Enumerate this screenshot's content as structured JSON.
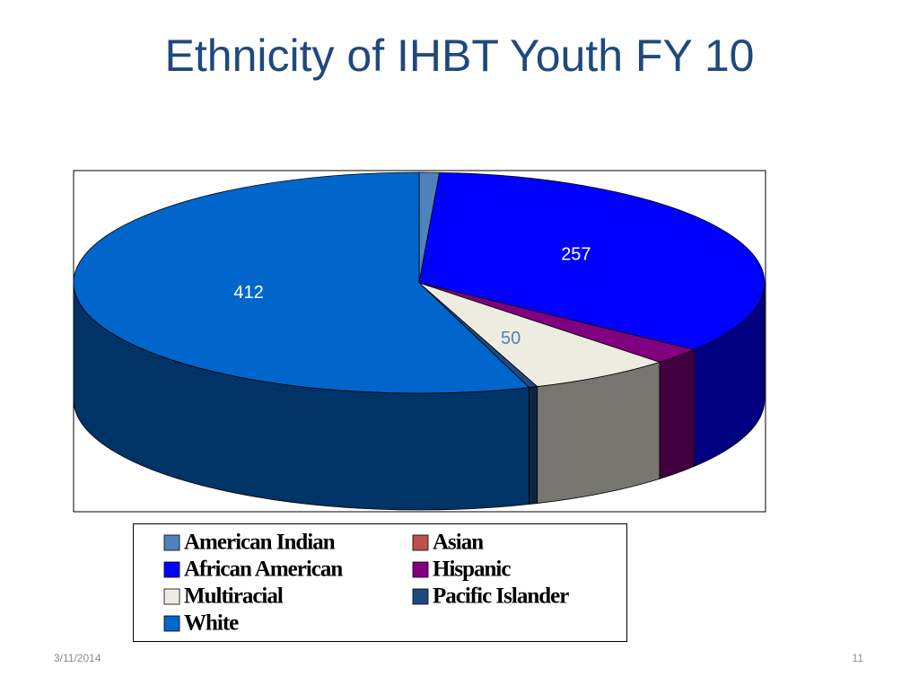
{
  "chart_data": {
    "type": "pie3d",
    "title": "Ethnicity of IHBT Youth FY 10",
    "categories": [
      "American Indian",
      "Asian",
      "African American",
      "Hispanic",
      "Multiracial",
      "Pacific Islander",
      "White"
    ],
    "values": [
      7,
      0,
      257,
      18,
      50,
      3,
      412
    ],
    "value_labels": [
      null,
      null,
      "257",
      null,
      "50",
      null,
      "412"
    ],
    "colors": [
      "#4f81bd",
      "#c0504d",
      "#0000ff",
      "#800080",
      "#eeece1",
      "#1f497d",
      "#0066cc"
    ],
    "legend": "bottom"
  },
  "footer": {
    "date": "3/11/2014",
    "page": "11"
  }
}
